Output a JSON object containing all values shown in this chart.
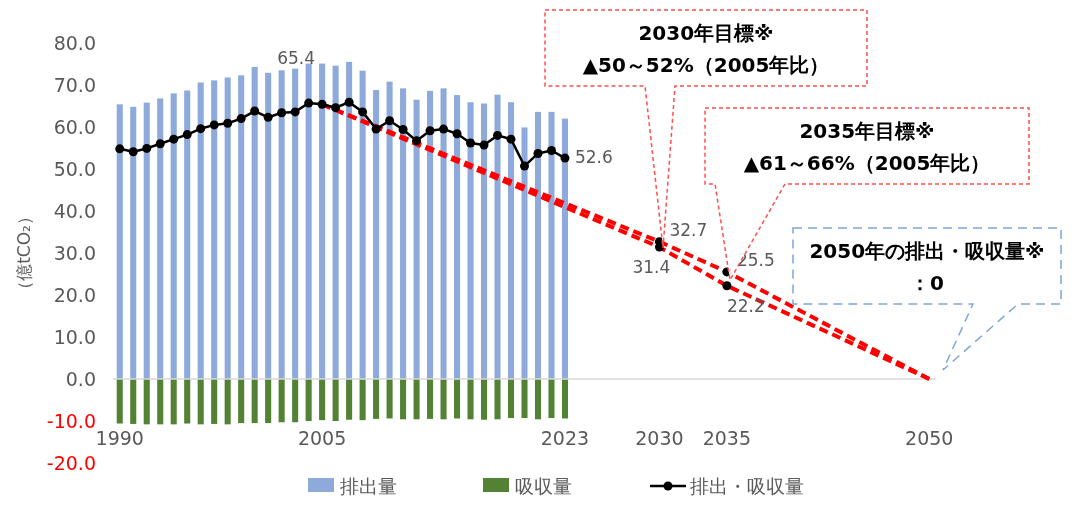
{
  "chart_data": {
    "type": "bar",
    "ylabel": "（億tCO₂）",
    "xlim": [
      1989.5,
      2050.5
    ],
    "xticks": [
      1990,
      2005,
      2023,
      2030,
      2035,
      2050
    ],
    "ylim": [
      -20,
      80
    ],
    "yticks": [
      {
        "value": -20,
        "label": "-20.0"
      },
      {
        "value": -10,
        "label": "-10.0"
      },
      {
        "value": 0,
        "label": "0.0"
      },
      {
        "value": 10,
        "label": "10.0"
      },
      {
        "value": 20,
        "label": "20.0"
      },
      {
        "value": 30,
        "label": "30.0"
      },
      {
        "value": 40,
        "label": "40.0"
      },
      {
        "value": 50,
        "label": "50.0"
      },
      {
        "value": 60,
        "label": "60.0"
      },
      {
        "value": 70,
        "label": "70.0"
      },
      {
        "value": 80,
        "label": "80.0"
      }
    ],
    "legend": "bottom",
    "stacked": true,
    "annotations": [
      "2030年目標※\n▲50～52%（2005年比）",
      "2035年目標※\n▲61～66%（2005年比）",
      "2050年の排出・吸収量※\n：0"
    ],
    "series": [
      {
        "name": "排出量",
        "color": "#8eaadb",
        "x": [
          1990,
          1991,
          1992,
          1993,
          1994,
          1995,
          1996,
          1997,
          1998,
          1999,
          2000,
          2001,
          2002,
          2003,
          2004,
          2005,
          2006,
          2007,
          2008,
          2009,
          2010,
          2011,
          2012,
          2013,
          2014,
          2015,
          2016,
          2017,
          2018,
          2019,
          2020,
          2021,
          2022,
          2023
        ],
        "values": [
          65.4,
          64.8,
          65.8,
          66.8,
          68.0,
          68.7,
          70.6,
          71.1,
          71.8,
          72.3,
          74.3,
          72.9,
          73.5,
          73.9,
          75.1,
          75.1,
          74.6,
          75.5,
          73.4,
          68.8,
          70.8,
          69.2,
          66.5,
          68.6,
          69.2,
          67.6,
          65.9,
          65.6,
          67.7,
          65.9,
          59.9,
          63.6,
          63.6,
          62.0
        ]
      },
      {
        "name": "吸収量",
        "color": "#548235",
        "x": [
          1990,
          1991,
          1992,
          1993,
          1994,
          1995,
          1996,
          1997,
          1998,
          1999,
          2000,
          2001,
          2002,
          2003,
          2004,
          2005,
          2006,
          2007,
          2008,
          2009,
          2010,
          2011,
          2012,
          2013,
          2014,
          2015,
          2016,
          2017,
          2018,
          2019,
          2020,
          2021,
          2022,
          2023
        ],
        "values": [
          -10.6,
          -10.7,
          -10.8,
          -10.8,
          -10.8,
          -10.6,
          -10.8,
          -10.7,
          -10.8,
          -10.5,
          -10.5,
          -10.5,
          -10.3,
          -10.3,
          -10.0,
          -9.8,
          -10.0,
          -9.7,
          -9.8,
          -9.5,
          -9.4,
          -9.6,
          -9.6,
          -9.5,
          -9.6,
          -9.4,
          -9.6,
          -9.7,
          -9.6,
          -9.3,
          -9.3,
          -9.6,
          -9.3,
          -9.4
        ]
      },
      {
        "type": "line",
        "color": "#ff0000",
        "line_style": "dashed",
        "marker": "none",
        "x": [
          2005,
          2030,
          2035,
          2050
        ],
        "values": [
          65.4,
          32.7,
          25.5,
          0
        ]
      },
      {
        "type": "line",
        "color": "#ff0000",
        "line_style": "dashed",
        "marker": "none",
        "x": [
          2005,
          2030,
          2035,
          2050
        ],
        "values": [
          65.4,
          31.4,
          22.2,
          0
        ]
      },
      {
        "name": "排出・吸収量",
        "type": "line",
        "color": "#000000",
        "line_style": "solid",
        "marker": "circle",
        "x": [
          1990,
          1991,
          1992,
          1993,
          1994,
          1995,
          1996,
          1997,
          1998,
          1999,
          2000,
          2001,
          2002,
          2003,
          2004,
          2005,
          2006,
          2007,
          2008,
          2009,
          2010,
          2011,
          2012,
          2013,
          2014,
          2015,
          2016,
          2017,
          2018,
          2019,
          2020,
          2021,
          2022,
          2023
        ],
        "values": [
          54.8,
          54.1,
          54.9,
          56.0,
          57.1,
          58.2,
          59.6,
          60.5,
          60.9,
          62.0,
          63.8,
          62.3,
          63.4,
          63.6,
          65.7,
          65.4,
          64.6,
          65.9,
          63.6,
          59.5,
          61.5,
          59.4,
          56.7,
          59.1,
          59.5,
          58.4,
          56.2,
          55.7,
          58.0,
          57.1,
          50.7,
          53.7,
          54.4,
          52.6
        ],
        "value_labels": [
          null,
          null,
          null,
          null,
          null,
          null,
          null,
          null,
          null,
          null,
          null,
          null,
          null,
          null,
          null,
          "65.4",
          null,
          null,
          null,
          null,
          null,
          null,
          null,
          null,
          null,
          null,
          null,
          null,
          null,
          null,
          null,
          null,
          null,
          "52.6"
        ]
      },
      {
        "type": "scatter",
        "color": "#000000",
        "marker": "circle",
        "x": [
          2030,
          2030,
          2035,
          2035
        ],
        "values": [
          32.7,
          31.4,
          25.5,
          22.2
        ],
        "value_labels": [
          "32.7",
          "31.4",
          "25.5",
          "22.2"
        ]
      }
    ]
  }
}
